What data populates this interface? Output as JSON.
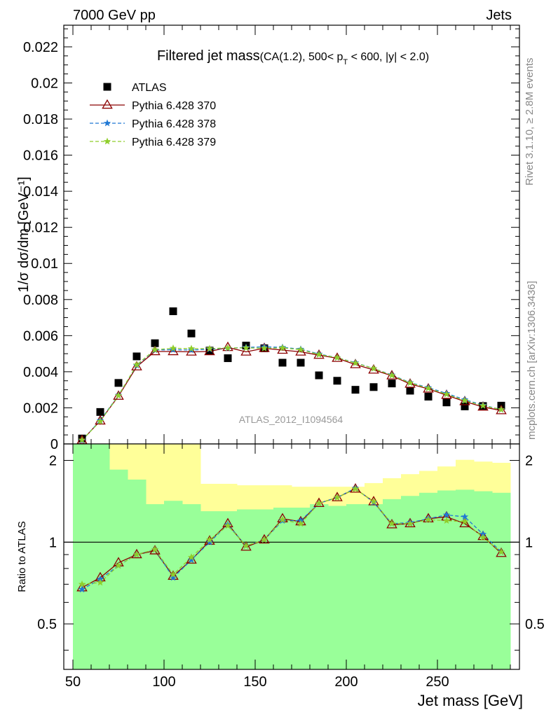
{
  "header": {
    "left": "7000 GeV pp",
    "right": "Jets"
  },
  "side_labels": {
    "rivet": "Rivet 3.1.10, ≥ 2.8M events",
    "site": "mcplots.cern.ch [arXiv:1306.3436]"
  },
  "chart_data": [
    {
      "type": "scatter",
      "title": "Filtered jet mass",
      "subtitle": "(CA(1.2), 500< p_T < 600, |y| < 2.0)",
      "title_sub_parts": {
        "pre": "(CA(1.2), 500< p",
        "sub": "T",
        "post": " < 600, |y| < 2.0)"
      },
      "ylabel": "1/σ dσ/dm [GeV⁻¹]",
      "watermark": "ATLAS_2012_I1094564",
      "xlim": [
        45,
        295
      ],
      "ylim": [
        0,
        0.0232
      ],
      "yticks": [
        0,
        0.002,
        0.004,
        0.006,
        0.008,
        0.01,
        0.012,
        0.014,
        0.016,
        0.018,
        0.02,
        0.022
      ],
      "ytick_labels": [
        "0",
        "0.002",
        "0.004",
        "0.006",
        "0.008",
        "0.01",
        "0.012",
        "0.014",
        "0.016",
        "0.018",
        "0.02",
        "0.022"
      ],
      "legend_position": "top-left",
      "x": [
        55,
        65,
        75,
        85,
        95,
        105,
        115,
        125,
        135,
        145,
        155,
        165,
        175,
        185,
        195,
        205,
        215,
        225,
        235,
        245,
        255,
        265,
        275,
        285
      ],
      "series": [
        {
          "name": "ATLAS",
          "style": "square",
          "color": "#000000",
          "values": [
            0.0003,
            0.00177,
            0.00338,
            0.00485,
            0.00558,
            0.00735,
            0.00612,
            0.00517,
            0.00475,
            0.00545,
            0.0053,
            0.0045,
            0.0045,
            0.0038,
            0.0035,
            0.003,
            0.00315,
            0.00335,
            0.00295,
            0.00262,
            0.0023,
            0.00208,
            0.0021,
            0.00212
          ]
        },
        {
          "name": "Pythia 6.428 370",
          "style": "triangle-line",
          "color": "#8b0000",
          "values": [
            0.0002,
            0.00128,
            0.00265,
            0.00428,
            0.00512,
            0.00512,
            0.0051,
            0.00512,
            0.00535,
            0.0051,
            0.0053,
            0.0052,
            0.0051,
            0.00492,
            0.00475,
            0.0044,
            0.0041,
            0.00378,
            0.00332,
            0.00305,
            0.0027,
            0.00235,
            0.00205,
            0.00185
          ]
        },
        {
          "name": "Pythia 6.428 378",
          "style": "star-dashed",
          "color": "#1f78d4",
          "values": [
            0.0002,
            0.0013,
            0.0027,
            0.00435,
            0.0052,
            0.00522,
            0.0052,
            0.00525,
            0.0053,
            0.00535,
            0.00538,
            0.00535,
            0.00525,
            0.00498,
            0.00478,
            0.0045,
            0.00418,
            0.00382,
            0.0034,
            0.00312,
            0.0028,
            0.00245,
            0.00215,
            0.0019
          ]
        },
        {
          "name": "Pythia 6.428 379",
          "style": "star-dashed",
          "color": "#8fce2a",
          "values": [
            0.00022,
            0.00125,
            0.00268,
            0.00438,
            0.00522,
            0.0053,
            0.00528,
            0.00528,
            0.00532,
            0.00532,
            0.0053,
            0.00532,
            0.00522,
            0.00495,
            0.00478,
            0.00448,
            0.00418,
            0.0038,
            0.00338,
            0.00308,
            0.00275,
            0.0024,
            0.00212,
            0.0019
          ]
        }
      ]
    },
    {
      "type": "line",
      "ylabel": "Ratio to ATLAS",
      "xlabel": "Jet mass [GeV]",
      "xlim": [
        45,
        295
      ],
      "ylim": [
        0.34,
        2.3
      ],
      "yticks": [
        0.5,
        1,
        2
      ],
      "ytick_labels": [
        "0.5",
        "1",
        "2"
      ],
      "xticks": [
        50,
        100,
        150,
        200,
        250
      ],
      "xtick_labels": [
        "50",
        "100",
        "150",
        "200",
        "250"
      ],
      "bin_edges": [
        50,
        60,
        70,
        80,
        90,
        100,
        110,
        120,
        130,
        140,
        150,
        160,
        170,
        180,
        190,
        200,
        210,
        220,
        230,
        240,
        250,
        260,
        270,
        280,
        290
      ],
      "band_outer": {
        "color": "#ffff99",
        "lo": [
          0.34,
          0.34,
          0.34,
          0.34,
          0.68,
          0.68,
          0.34,
          0.38,
          0.76,
          0.76,
          0.75,
          0.76,
          0.75,
          0.75,
          0.74,
          0.72,
          0.7,
          0.7,
          0.69,
          0.67,
          0.63,
          0.58,
          0.53,
          0.5
        ],
        "hi": [
          2.3,
          2.3,
          2.3,
          2.3,
          2.3,
          2.3,
          2.3,
          1.64,
          1.64,
          1.62,
          1.62,
          1.62,
          1.6,
          1.6,
          1.6,
          1.6,
          1.65,
          1.72,
          1.78,
          1.83,
          1.9,
          2.01,
          1.98,
          1.96
        ]
      },
      "band_inner": {
        "color": "#99ff99",
        "lo": [
          0.34,
          0.34,
          0.34,
          0.34,
          0.34,
          0.34,
          0.34,
          0.34,
          0.34,
          0.34,
          0.34,
          0.34,
          0.34,
          0.34,
          0.34,
          0.34,
          0.34,
          0.34,
          0.34,
          0.34,
          0.34,
          0.34,
          0.34,
          0.34
        ],
        "hi": [
          2.3,
          2.3,
          1.85,
          1.7,
          1.38,
          1.42,
          1.38,
          1.3,
          1.3,
          1.32,
          1.32,
          1.34,
          1.34,
          1.38,
          1.36,
          1.38,
          1.38,
          1.44,
          1.48,
          1.52,
          1.55,
          1.56,
          1.54,
          1.52
        ]
      },
      "series": [
        {
          "name": "Pythia 6.428 370",
          "values": [
            0.68,
            0.74,
            0.84,
            0.9,
            0.93,
            0.75,
            0.86,
            1.01,
            1.17,
            0.96,
            1.02,
            1.22,
            1.19,
            1.39,
            1.46,
            1.57,
            1.41,
            1.16,
            1.17,
            1.22,
            1.24,
            1.17,
            1.05,
            0.91
          ]
        },
        {
          "name": "Pythia 6.428 378",
          "values": [
            0.67,
            0.73,
            0.82,
            0.9,
            0.94,
            0.74,
            0.86,
            1.0,
            1.16,
            0.97,
            1.02,
            1.2,
            1.2,
            1.39,
            1.46,
            1.58,
            1.4,
            1.17,
            1.18,
            1.22,
            1.26,
            1.24,
            1.07,
            0.92
          ]
        },
        {
          "name": "Pythia 6.428 379",
          "values": [
            0.7,
            0.71,
            0.82,
            0.9,
            0.94,
            0.76,
            0.88,
            1.02,
            1.15,
            0.97,
            1.02,
            1.21,
            1.17,
            1.39,
            1.46,
            1.57,
            1.41,
            1.17,
            1.17,
            1.21,
            1.2,
            1.19,
            1.04,
            0.92
          ]
        }
      ]
    }
  ]
}
